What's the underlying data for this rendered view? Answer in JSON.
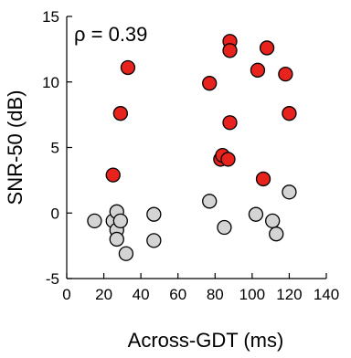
{
  "chart_data": {
    "type": "scatter",
    "title": "",
    "xlabel": "Across-GDT (ms)",
    "ylabel": "SNR-50 (dB)",
    "xlim": [
      0,
      140
    ],
    "ylim": [
      -5,
      15
    ],
    "xticks": [
      0,
      20,
      40,
      60,
      80,
      100,
      120,
      140
    ],
    "yticks": [
      -5,
      0,
      5,
      10,
      15
    ],
    "xtick_labels": [
      "0",
      "20",
      "40",
      "60",
      "80",
      "100",
      "120",
      "140"
    ],
    "ytick_labels": [
      "-5",
      "0",
      "5",
      "10",
      "15"
    ],
    "grid": false,
    "annotation": "ρ = 0.39",
    "series": [
      {
        "color": "#e8231e",
        "points": [
          {
            "x": 25,
            "y": 2.9
          },
          {
            "x": 29,
            "y": 7.6
          },
          {
            "x": 33,
            "y": 11.1
          },
          {
            "x": 77,
            "y": 9.9
          },
          {
            "x": 83,
            "y": 4.1
          },
          {
            "x": 84,
            "y": 4.4
          },
          {
            "x": 87,
            "y": 4.1
          },
          {
            "x": 88,
            "y": 6.9
          },
          {
            "x": 88,
            "y": 13.1
          },
          {
            "x": 88,
            "y": 12.4
          },
          {
            "x": 103,
            "y": 10.9
          },
          {
            "x": 106,
            "y": 2.6
          },
          {
            "x": 108,
            "y": 12.6
          },
          {
            "x": 118,
            "y": 10.6
          },
          {
            "x": 120,
            "y": 7.6
          }
        ]
      },
      {
        "color": "#d4d4d4",
        "points": [
          {
            "x": 15,
            "y": -0.6
          },
          {
            "x": 25,
            "y": -0.6
          },
          {
            "x": 27,
            "y": 0.1
          },
          {
            "x": 27,
            "y": -1.3
          },
          {
            "x": 27,
            "y": -2.0
          },
          {
            "x": 29,
            "y": -0.6
          },
          {
            "x": 32,
            "y": -3.1
          },
          {
            "x": 47,
            "y": -0.1
          },
          {
            "x": 47,
            "y": -2.1
          },
          {
            "x": 77,
            "y": 0.9
          },
          {
            "x": 85,
            "y": -1.1
          },
          {
            "x": 102,
            "y": -0.1
          },
          {
            "x": 111,
            "y": -0.6
          },
          {
            "x": 113,
            "y": -1.6
          },
          {
            "x": 120,
            "y": 1.6
          }
        ]
      }
    ]
  }
}
